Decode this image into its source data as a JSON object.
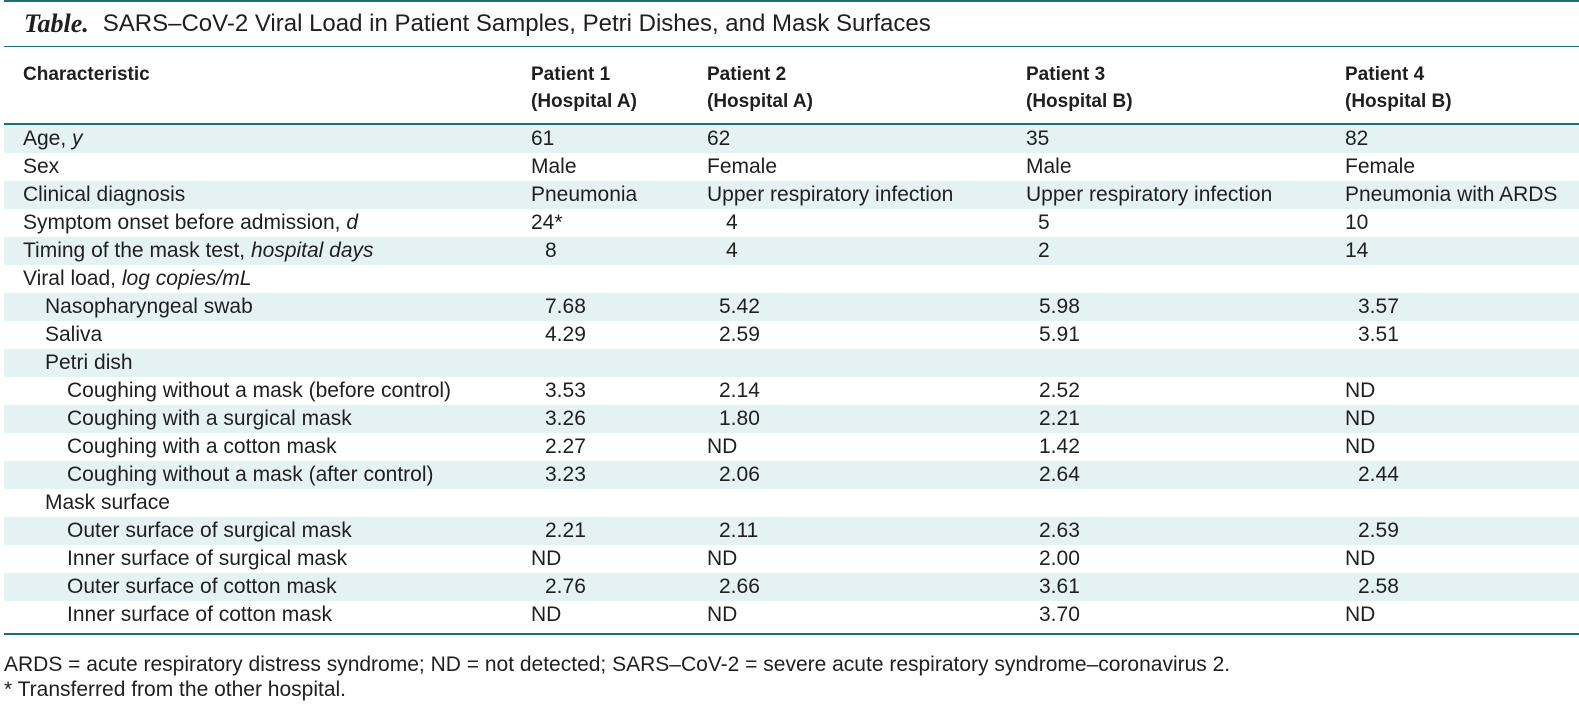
{
  "title": {
    "label": "Table.",
    "text": "SARS–CoV-2 Viral Load in Patient Samples, Petri Dishes, and Mask Surfaces"
  },
  "header": {
    "characteristic": "Characteristic",
    "patients": [
      {
        "name": "Patient 1",
        "hospital": "(Hospital A)"
      },
      {
        "name": "Patient 2",
        "hospital": "(Hospital A)"
      },
      {
        "name": "Patient 3",
        "hospital": "(Hospital B)"
      },
      {
        "name": "Patient 4",
        "hospital": "(Hospital B)"
      }
    ]
  },
  "rows": {
    "age": {
      "label": "Age, ",
      "unit": "y",
      "values": [
        "61",
        "62",
        "35",
        "82"
      ]
    },
    "sex": {
      "label": "Sex",
      "values": [
        "Male",
        "Female",
        "Male",
        "Female"
      ]
    },
    "diagnosis": {
      "label": "Clinical diagnosis",
      "values": [
        "Pneumonia",
        "Upper respiratory infection",
        "Upper respiratory infection",
        "Pneumonia with ARDS"
      ]
    },
    "onset": {
      "label": "Symptom onset before admission, ",
      "unit": "d",
      "values": [
        "24*",
        "4",
        "5",
        "10"
      ]
    },
    "timing": {
      "label": "Timing of the mask test, ",
      "unit": "hospital days",
      "values": [
        "8",
        "4",
        "2",
        "14"
      ]
    },
    "viral_load": {
      "label": "Viral load, ",
      "unit": "log copies/mL"
    },
    "nasopharyngeal": {
      "label": "Nasopharyngeal swab",
      "values": [
        "7.68",
        "5.42",
        "5.98",
        "3.57"
      ]
    },
    "saliva": {
      "label": "Saliva",
      "values": [
        "4.29",
        "2.59",
        "5.91",
        "3.51"
      ]
    },
    "petri": {
      "label": "Petri dish"
    },
    "cough_none_before": {
      "label": "Coughing without a mask (before control)",
      "values": [
        "3.53",
        "2.14",
        "2.52",
        "ND"
      ]
    },
    "cough_surgical": {
      "label": "Coughing with a surgical mask",
      "values": [
        "3.26",
        "1.80",
        "2.21",
        "ND"
      ]
    },
    "cough_cotton": {
      "label": "Coughing with a cotton mask",
      "values": [
        "2.27",
        "ND",
        "1.42",
        "ND"
      ]
    },
    "cough_none_after": {
      "label": "Coughing without a mask (after control)",
      "values": [
        "3.23",
        "2.06",
        "2.64",
        "2.44"
      ]
    },
    "mask_surface": {
      "label": "Mask surface"
    },
    "outer_surgical": {
      "label": "Outer surface of surgical mask",
      "values": [
        "2.21",
        "2.11",
        "2.63",
        "2.59"
      ]
    },
    "inner_surgical": {
      "label": "Inner surface of surgical mask",
      "values": [
        "ND",
        "ND",
        "2.00",
        "ND"
      ]
    },
    "outer_cotton": {
      "label": "Outer surface of cotton mask",
      "values": [
        "2.76",
        "2.66",
        "3.61",
        "2.58"
      ]
    },
    "inner_cotton": {
      "label": "Inner surface of cotton mask",
      "values": [
        "ND",
        "ND",
        "3.70",
        "ND"
      ]
    }
  },
  "footnotes": [
    "ARDS = acute respiratory distress syndrome; ND = not detected; SARS–CoV-2 = severe acute respiratory syndrome–coronavirus 2.",
    "* Transferred from the other hospital."
  ]
}
